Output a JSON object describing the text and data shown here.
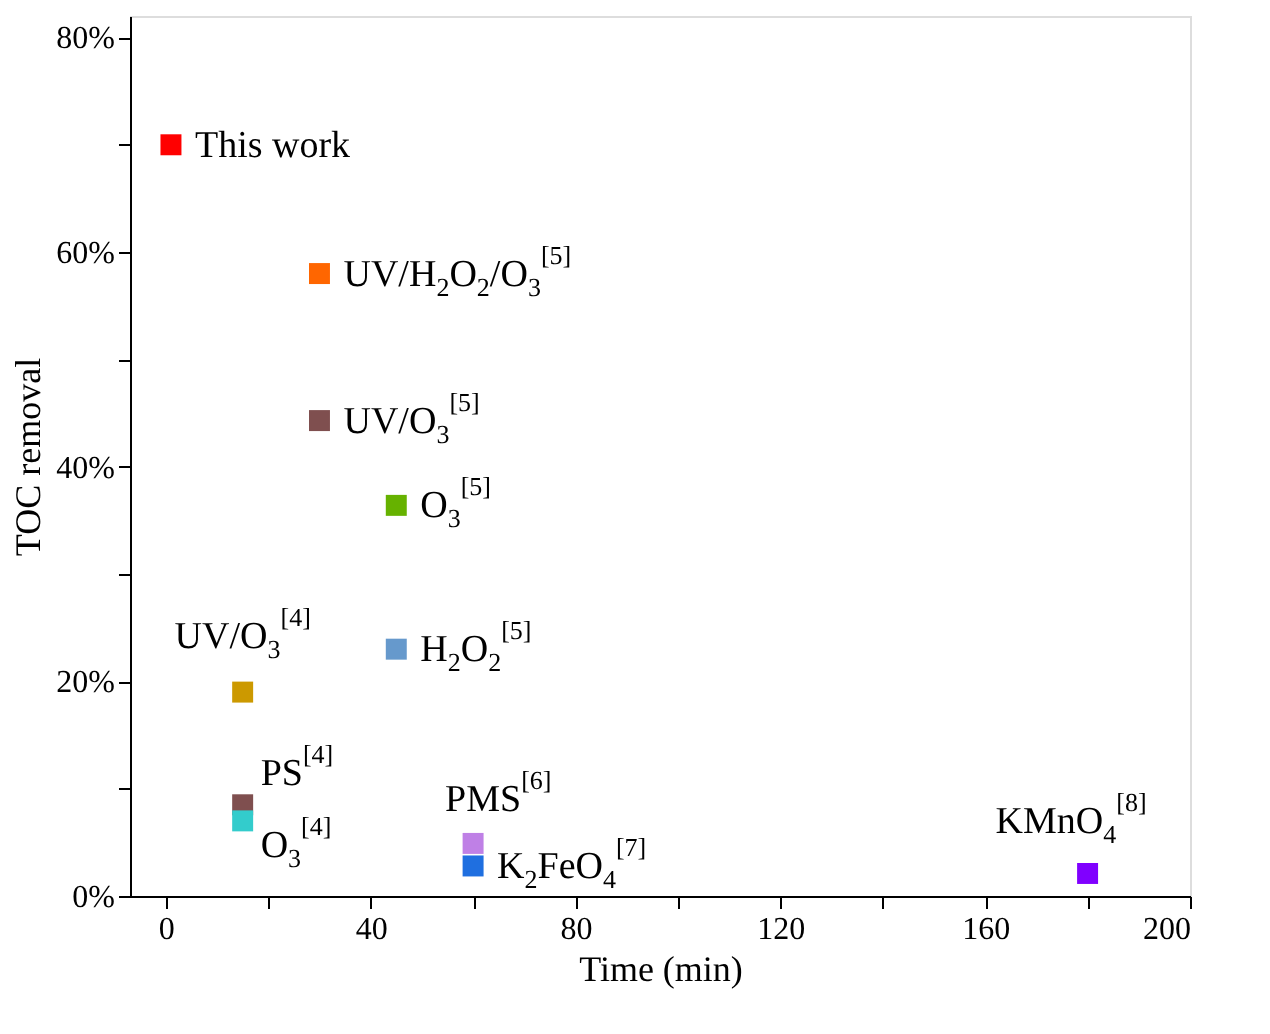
{
  "chart_data": {
    "type": "scatter",
    "xlabel": "Time (min)",
    "ylabel": "TOC removal",
    "marker": "square",
    "grid": false,
    "legend": false,
    "xlim": [
      -7,
      200
    ],
    "ylim": [
      0,
      82
    ],
    "xticks": [
      0,
      {
        "value": 20,
        "label": null
      },
      40,
      {
        "value": 60,
        "label": null
      },
      80,
      {
        "value": 100,
        "label": null
      },
      120,
      {
        "value": 140,
        "label": null
      },
      160,
      {
        "value": 180,
        "label": null
      },
      200
    ],
    "yticks": [
      {
        "value": 0,
        "label": "0%"
      },
      {
        "value": 10,
        "label": null
      },
      {
        "value": 20,
        "label": "20%"
      },
      {
        "value": 30,
        "label": null
      },
      {
        "value": 40,
        "label": "40%"
      },
      {
        "value": 50,
        "label": null
      },
      {
        "value": 60,
        "label": "60%"
      },
      {
        "value": 70,
        "label": null
      },
      {
        "value": 80,
        "label": "80%"
      }
    ],
    "series": [
      {
        "name": "This work",
        "color": "#ff0000",
        "x": [
          1
        ],
        "values": [
          70
        ]
      },
      {
        "name": "UV/H$_{2}$O$_{2}$/O$_{3}$$^{[5]}$",
        "color": "#ff6600",
        "x": [
          30
        ],
        "values": [
          58
        ]
      },
      {
        "name": "UV/O$_{3}$$^{[5]}$",
        "color": "#7f4f4f",
        "x": [
          30
        ],
        "values": [
          44.3
        ]
      },
      {
        "name": "O$_{3}$$^{[5]}$",
        "color": "#66b200",
        "x": [
          45
        ],
        "values": [
          36.4
        ]
      },
      {
        "name": "H$_{2}$O$_{2}$$^{[5]}$",
        "color": "#6699cc",
        "x": [
          45
        ],
        "values": [
          23
        ]
      },
      {
        "name": "UV/O$_{3}$$^{[4]}$",
        "color": "#cc9900",
        "x": [
          15
        ],
        "values": [
          19
        ]
      },
      {
        "name": "PS$^{[4]}$",
        "color": "#7f4f4f",
        "x": [
          15
        ],
        "values": [
          8.5
        ]
      },
      {
        "name": "O$_{3}$$^{[4]}$",
        "color": "#33cccc",
        "x": [
          15
        ],
        "values": [
          7
        ]
      },
      {
        "name": "PMS$^{[6]}$",
        "color": "#bf80e6",
        "x": [
          60
        ],
        "values": [
          4.9
        ]
      },
      {
        "name": "K$_{2}$FeO$_{4}$$^{[7]}$",
        "color": "#1f6fe0",
        "x": [
          60
        ],
        "values": [
          2.8
        ]
      },
      {
        "name": "KMnO$_{4}$$^{[8]}$",
        "color": "#8000ff",
        "x": [
          180
        ],
        "values": [
          2.1
        ]
      }
    ]
  }
}
